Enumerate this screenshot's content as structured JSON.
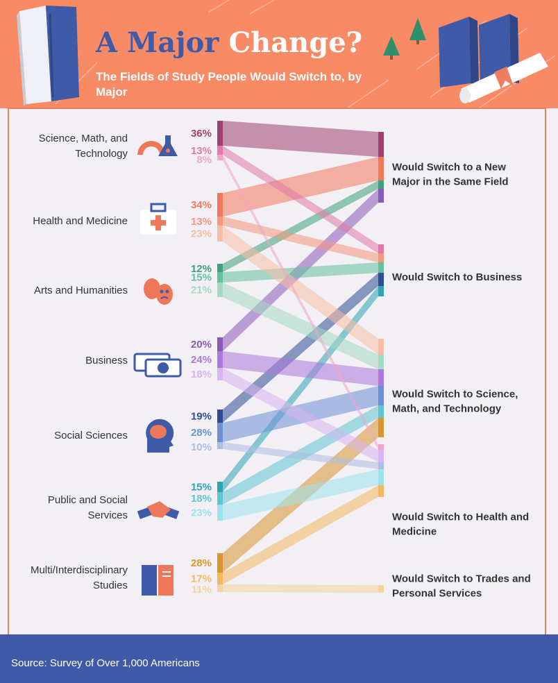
{
  "header": {
    "title_word1": "A Major",
    "title_word2": "Change?",
    "subtitle": "The Fields of Study People Would Switch to, by Major"
  },
  "footer": {
    "source": "Source: Survey of Over 1,000 Americans"
  },
  "colors": {
    "header_bg": "#f98a66",
    "title_blue": "#3f5aa6",
    "panel_bg": "#f2f0f4",
    "footer_bg": "#3f5aa6",
    "icon_orange": "#f0785a",
    "icon_blue": "#3f5aa6",
    "same_field": "#a0426f",
    "business": "#e86e98",
    "science": "#9b66cc",
    "health": "#4db9c8",
    "trades": "#f2a044"
  },
  "chart_data": {
    "type": "sankey",
    "source_majors": [
      {
        "label": "Science, Math, and Technology",
        "icon": "protractor-flask-icon",
        "flows": [
          {
            "value": 36,
            "label": "36%",
            "target": "Would Switch to a New Major in the Same Field",
            "color": "#a0426f"
          },
          {
            "value": 13,
            "label": "13%",
            "target": "Would Switch to Business",
            "color": "#e27aa8"
          },
          {
            "value": 8,
            "label": "8%",
            "target": "Would Switch to Health and Medicine",
            "color": "#f0a6c8"
          }
        ]
      },
      {
        "label": "Health and Medicine",
        "icon": "medical-kit-icon",
        "flows": [
          {
            "value": 34,
            "label": "34%",
            "target": "Would Switch to a New Major in the Same Field",
            "color": "#f2785b"
          },
          {
            "value": 13,
            "label": "13%",
            "target": "Would Switch to Business",
            "color": "#f5977c"
          },
          {
            "value": 23,
            "label": "23%",
            "target": "Would Switch to Science, Math, and Technology",
            "color": "#f8bda6"
          }
        ]
      },
      {
        "label": "Arts and Humanities",
        "icon": "theater-masks-icon",
        "flows": [
          {
            "value": 12,
            "label": "12%",
            "target": "Would Switch to a New Major in the Same Field",
            "color": "#3ea07e"
          },
          {
            "value": 15,
            "label": "15%",
            "target": "Would Switch to Business",
            "color": "#66bf9f"
          },
          {
            "value": 21,
            "label": "21%",
            "target": "Would Switch to Science, Math, and Technology",
            "color": "#a6d9c4"
          }
        ]
      },
      {
        "label": "Business",
        "icon": "money-bills-icon",
        "flows": [
          {
            "value": 20,
            "label": "20%",
            "target": "Would Switch to a New Major in the Same Field",
            "color": "#8a5ab8"
          },
          {
            "value": 24,
            "label": "24%",
            "target": "Would Switch to Science, Math, and Technology",
            "color": "#ad78dd"
          },
          {
            "value": 18,
            "label": "18%",
            "target": "Would Switch to Health and Medicine",
            "color": "#d8b4f0"
          }
        ]
      },
      {
        "label": "Social Sciences",
        "icon": "brain-head-icon",
        "flows": [
          {
            "value": 19,
            "label": "19%",
            "target": "Would Switch to Business",
            "color": "#2f4c94"
          },
          {
            "value": 28,
            "label": "28%",
            "target": "Would Switch to Science, Math, and Technology",
            "color": "#6e8fd6"
          },
          {
            "value": 10,
            "label": "10%",
            "target": "Would Switch to Health and Medicine",
            "color": "#aebde6"
          }
        ]
      },
      {
        "label": "Public and Social Services",
        "icon": "handshake-icon",
        "flows": [
          {
            "value": 15,
            "label": "15%",
            "target": "Would Switch to Business",
            "color": "#2ea4b4"
          },
          {
            "value": 18,
            "label": "18%",
            "target": "Would Switch to Science, Math, and Technology",
            "color": "#5ec5d2"
          },
          {
            "value": 23,
            "label": "23%",
            "target": "Would Switch to Health and Medicine",
            "color": "#9ce3ec"
          }
        ]
      },
      {
        "label": "Multi/Interdisciplinary Studies",
        "icon": "books-icon",
        "flows": [
          {
            "value": 28,
            "label": "28%",
            "target": "Would Switch to Science, Math, and Technology",
            "color": "#d99530"
          },
          {
            "value": 17,
            "label": "17%",
            "target": "Would Switch to Health and Medicine",
            "color": "#f3b860"
          },
          {
            "value": 11,
            "label": "11%",
            "target": "Would Switch to Trades and Personal Services",
            "color": "#f6d3a0"
          }
        ]
      }
    ],
    "targets": [
      {
        "label": "Would Switch to a New Major in the Same Field"
      },
      {
        "label": "Would Switch to Business"
      },
      {
        "label": "Would Switch to Science, Math, and Technology"
      },
      {
        "label": "Would Switch to Health and Medicine"
      },
      {
        "label": "Would Switch to Trades and Personal Services"
      }
    ]
  }
}
